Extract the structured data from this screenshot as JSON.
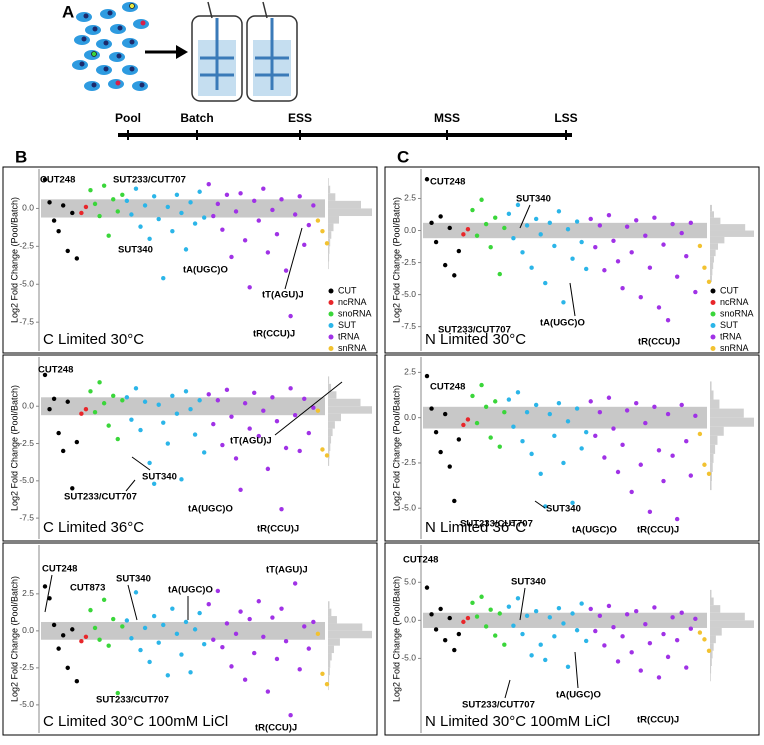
{
  "labels": {
    "a": "A",
    "b": "B",
    "c": "C"
  },
  "timeline": [
    "Pool",
    "Batch",
    "ESS",
    "MSS",
    "LSS"
  ],
  "chart_data": [
    {
      "type": "scatter",
      "title": "C Limited 30°C",
      "y_label": "Log2 Fold Change (Pool/Batch)",
      "ylim": [
        -9.4,
        2.6
      ],
      "yticks": [
        {
          "value": 0,
          "label": "0.0"
        },
        -2.5,
        {
          "value": -5,
          "label": "-5.0"
        },
        -7.5
      ],
      "band": [
        -0.6,
        0.6
      ],
      "legend": "right",
      "series": [
        {
          "name": "CUT",
          "color": "#000000",
          "values": [
            1.9,
            0.4,
            -0.8,
            -1.5,
            0.2,
            -2.8,
            -0.3,
            -3.3
          ]
        },
        {
          "name": "ncRNA",
          "color": "#e8262a",
          "values": [
            -0.3,
            0.1
          ]
        },
        {
          "name": "snoRNA",
          "color": "#3ad63a",
          "values": [
            1.2,
            0.3,
            -0.5,
            1.5,
            -1.8,
            0.6,
            -0.2,
            0.9
          ]
        },
        {
          "name": "SUT",
          "color": "#2bb5e8",
          "values": [
            0.5,
            -0.4,
            1.3,
            -1.2,
            0.2,
            -2.0,
            0.8,
            -0.7,
            -4.6,
            0.1,
            -1.5,
            0.9,
            -0.3,
            -2.7,
            0.4,
            -1.0,
            1.1,
            -0.6
          ]
        },
        {
          "name": "tRNA",
          "color": "#a032e6",
          "values": [
            1.6,
            -0.5,
            0.3,
            -1.4,
            0.9,
            -3.2,
            -0.2,
            1.0,
            -2.1,
            -5.2,
            0.5,
            -0.8,
            1.3,
            -2.9,
            -0.1,
            -1.7,
            0.6,
            -4.1,
            -7.1,
            -0.4,
            0.8,
            -2.4,
            -1.1,
            0.2
          ]
        },
        {
          "name": "snRNA",
          "color": "#f2c230",
          "values": [
            -0.8,
            -1.5,
            -2.3
          ]
        }
      ],
      "histogram": {
        "bins": [
          -4,
          -3.5,
          -3,
          -2.5,
          -2,
          -1.5,
          -1,
          -0.5,
          0,
          0.5,
          1,
          1.5,
          2
        ],
        "counts": [
          2,
          3,
          4,
          6,
          9,
          15,
          30,
          120,
          90,
          20,
          6,
          2
        ]
      },
      "annotations": [
        "CUT248",
        "SUT233/CUT707",
        "SUT340",
        "tA(UGC)O",
        "tT(AGU)J",
        "tR(CCU)J"
      ]
    },
    {
      "type": "scatter",
      "title": "C Limited 36°C",
      "y_label": "Log2 Fold Change (Pool/Batch)",
      "ylim": [
        -8.9,
        3.3
      ],
      "yticks": [
        {
          "value": 0,
          "label": "0.0"
        },
        -2.5,
        {
          "value": -5,
          "label": "-5.0"
        },
        -7.5
      ],
      "band": [
        -0.6,
        0.6
      ],
      "series": [
        {
          "name": "CUT",
          "color": "#000000",
          "values": [
            2.1,
            -0.2,
            0.5,
            -1.8,
            -3.0,
            0.3,
            -5.5,
            -2.4
          ]
        },
        {
          "name": "ncRNA",
          "color": "#e8262a",
          "values": [
            -0.5,
            -0.2
          ]
        },
        {
          "name": "snoRNA",
          "color": "#3ad63a",
          "values": [
            1.0,
            -0.4,
            1.6,
            0.2,
            -1.3,
            0.7,
            -2.2,
            0.4
          ]
        },
        {
          "name": "SUT",
          "color": "#2bb5e8",
          "values": [
            0.6,
            -0.9,
            1.2,
            -1.6,
            0.3,
            -3.8,
            -5.2,
            0.1,
            -1.1,
            -2.5,
            0.7,
            -0.5,
            -4.9,
            1.0,
            -0.2,
            -1.9,
            0.4,
            -3.1
          ]
        },
        {
          "name": "tRNA",
          "color": "#a032e6",
          "values": [
            0.8,
            -1.2,
            0.4,
            -2.6,
            1.1,
            -0.7,
            -3.5,
            -5.6,
            0.2,
            -1.5,
            0.9,
            -2.0,
            -0.3,
            -4.2,
            0.6,
            -1.0,
            -6.9,
            -2.8,
            1.2,
            -0.6,
            -3.0,
            0.5,
            -1.8,
            -0.1
          ]
        },
        {
          "name": "snRNA",
          "color": "#f2c230",
          "values": [
            -0.3,
            -2.9,
            -3.3
          ]
        }
      ],
      "histogram": {
        "bins": [
          -4,
          -3.5,
          -3,
          -2.5,
          -2,
          -1.5,
          -1,
          -0.5,
          0,
          0.5,
          1,
          1.5,
          2
        ],
        "counts": [
          3,
          4,
          6,
          8,
          12,
          18,
          34,
          115,
          85,
          22,
          8,
          3
        ]
      },
      "annotations": [
        "CUT248",
        "tT(AGU)J",
        "SUT340",
        "SUT233/CUT707",
        "tA(UGC)O",
        "tR(CCU)J"
      ]
    },
    {
      "type": "scatter",
      "title": "C Limited 30°C 100mM LiCl",
      "y_label": "Log2 Fold Change (Pool/Batch)",
      "ylim": [
        -6.9,
        5.8
      ],
      "yticks": [
        2.5,
        {
          "value": 0,
          "label": "0.0"
        },
        -2.5,
        {
          "value": -5,
          "label": "-5.0"
        }
      ],
      "band": [
        -0.6,
        0.6
      ],
      "series": [
        {
          "name": "CUT",
          "color": "#000000",
          "values": [
            3.0,
            2.2,
            0.4,
            -1.2,
            -0.3,
            -2.5,
            0.1,
            -3.4
          ]
        },
        {
          "name": "ncRNA",
          "color": "#e8262a",
          "values": [
            -0.7,
            -0.4
          ]
        },
        {
          "name": "snoRNA",
          "color": "#3ad63a",
          "values": [
            1.4,
            0.2,
            -0.6,
            2.1,
            -1.0,
            0.8,
            -4.2,
            0.3
          ]
        },
        {
          "name": "SUT",
          "color": "#2bb5e8",
          "values": [
            0.7,
            -0.5,
            2.6,
            -1.3,
            0.2,
            -2.1,
            1.0,
            -0.8,
            0.4,
            -3.0,
            1.5,
            -0.2,
            -1.6,
            0.6,
            -2.8,
            0.1,
            1.2,
            -0.9
          ]
        },
        {
          "name": "tRNA",
          "color": "#a032e6",
          "values": [
            1.8,
            -0.6,
            2.7,
            -1.1,
            0.5,
            -2.4,
            -0.2,
            1.3,
            -3.3,
            0.8,
            -1.5,
            2.0,
            -0.4,
            -4.1,
            0.9,
            -1.9,
            1.5,
            -0.7,
            -5.7,
            3.2,
            -2.6,
            0.3,
            -1.2,
            0.6
          ]
        },
        {
          "name": "snRNA",
          "color": "#f2c230",
          "values": [
            -0.2,
            -2.9,
            -3.6
          ]
        }
      ],
      "histogram": {
        "bins": [
          -4,
          -3.5,
          -3,
          -2.5,
          -2,
          -1.5,
          -1,
          -0.5,
          0,
          0.5,
          1,
          1.5,
          2
        ],
        "counts": [
          2,
          3,
          5,
          6,
          10,
          16,
          32,
          118,
          92,
          24,
          9,
          4
        ]
      },
      "annotations": [
        "CUT248",
        "CUT873",
        "SUT340",
        "tA(UGC)O",
        "tT(AGU)J",
        "SUT233/CUT707",
        "tR(CCU)J"
      ]
    },
    {
      "type": "scatter",
      "title": "N Limited 30°C",
      "y_label": "Log2 Fold Change (Pool/Batch)",
      "ylim": [
        -9.4,
        4.8
      ],
      "yticks": [
        2.5,
        {
          "value": 0,
          "label": "0.0"
        },
        -2.5,
        {
          "value": -5,
          "label": "-5.0"
        },
        -7.5
      ],
      "band": [
        -0.6,
        0.6
      ],
      "legend": "right",
      "series": [
        {
          "name": "CUT",
          "color": "#000000",
          "values": [
            4.0,
            0.6,
            -0.9,
            1.1,
            -2.7,
            0.2,
            -3.5,
            -1.6
          ]
        },
        {
          "name": "ncRNA",
          "color": "#e8262a",
          "values": [
            -0.3,
            0.1
          ]
        },
        {
          "name": "snoRNA",
          "color": "#3ad63a",
          "values": [
            1.6,
            -0.4,
            2.4,
            0.5,
            -1.3,
            1.0,
            -3.4,
            0.2
          ]
        },
        {
          "name": "SUT",
          "color": "#2bb5e8",
          "values": [
            1.3,
            -0.6,
            2.0,
            -1.7,
            0.4,
            -2.9,
            0.9,
            -0.3,
            -4.1,
            0.6,
            -1.2,
            1.5,
            -5.6,
            0.1,
            -2.2,
            0.7,
            -0.9,
            -3.0
          ]
        },
        {
          "name": "tRNA",
          "color": "#a032e6",
          "values": [
            0.9,
            -1.3,
            0.4,
            -3.1,
            1.2,
            -0.8,
            -2.4,
            -4.5,
            0.3,
            -1.7,
            0.8,
            -5.2,
            -0.4,
            -2.9,
            1.0,
            -6.0,
            -1.1,
            -7.0,
            0.5,
            -3.6,
            -0.2,
            -2.0,
            0.6,
            -4.8
          ]
        },
        {
          "name": "snRNA",
          "color": "#f2c230",
          "values": [
            -1.2,
            -2.9,
            -4.0
          ]
        }
      ],
      "histogram": {
        "bins": [
          -4,
          -3.5,
          -3,
          -2.5,
          -2,
          -1.5,
          -1,
          -0.5,
          0,
          0.5,
          1,
          1.5,
          2
        ],
        "counts": [
          5,
          6,
          8,
          10,
          14,
          20,
          36,
          110,
          88,
          26,
          10,
          5
        ]
      },
      "annotations": [
        "CUT248",
        "SUT340",
        "SUT233/CUT707",
        "tA(UGC)O",
        "tR(CCU)J"
      ]
    },
    {
      "type": "scatter",
      "title": "N Limited 36°C",
      "y_label": "Log2 Fold Change (Pool/Batch)",
      "ylim": [
        -6.7,
        3.35
      ],
      "yticks": [
        2.5,
        {
          "value": 0,
          "label": "0.0"
        },
        -2.5,
        {
          "value": -5,
          "label": "-5.0"
        }
      ],
      "band": [
        -0.6,
        0.6
      ],
      "series": [
        {
          "name": "CUT",
          "color": "#000000",
          "values": [
            2.3,
            0.5,
            -0.8,
            -1.9,
            0.2,
            -2.7,
            -4.6,
            -1.2
          ]
        },
        {
          "name": "ncRNA",
          "color": "#e8262a",
          "values": [
            -0.4,
            -0.1
          ]
        },
        {
          "name": "snoRNA",
          "color": "#3ad63a",
          "values": [
            1.2,
            -0.3,
            1.8,
            0.6,
            -1.1,
            0.9,
            -1.6,
            0.3
          ]
        },
        {
          "name": "SUT",
          "color": "#2bb5e8",
          "values": [
            1.0,
            -0.5,
            1.4,
            -1.3,
            0.3,
            -2.0,
            0.7,
            -3.1,
            -4.9,
            0.2,
            -1.0,
            0.8,
            -2.5,
            -0.2,
            -4.7,
            0.5,
            -1.7,
            -0.8
          ]
        },
        {
          "name": "tRNA",
          "color": "#a032e6",
          "values": [
            0.9,
            -1.0,
            0.3,
            -2.2,
            1.1,
            -0.6,
            -3.0,
            -1.5,
            0.4,
            -4.1,
            0.8,
            -2.6,
            -0.3,
            -5.2,
            0.6,
            -1.8,
            -3.5,
            0.2,
            -2.1,
            -5.6,
            0.7,
            -1.3,
            -3.2,
            0.1
          ]
        },
        {
          "name": "snRNA",
          "color": "#f2c230",
          "values": [
            -0.9,
            -2.6,
            -3.1
          ]
        }
      ],
      "histogram": {
        "bins": [
          -4,
          -3.5,
          -3,
          -2.5,
          -2,
          -1.5,
          -1,
          -0.5,
          0,
          0.5,
          1,
          1.5,
          2
        ],
        "counts": [
          4,
          5,
          7,
          9,
          13,
          19,
          35,
          112,
          86,
          24,
          9,
          4
        ]
      },
      "annotations": [
        "CUT248",
        "SUT233/CUT707",
        "SUT340",
        "tA(UGC)O",
        "tR(CCU)J"
      ]
    },
    {
      "type": "scatter",
      "title": "N Limited 30°C 100mM LiCl",
      "y_label": "Log2 Fold Change (Pool/Batch)",
      "ylim": [
        -14.8,
        9.9
      ],
      "yticks": [
        {
          "value": 5,
          "label": "5.0"
        },
        {
          "value": 0,
          "label": "0.0"
        },
        {
          "value": -5,
          "label": "-5.0"
        }
      ],
      "band": [
        -1.0,
        1.0
      ],
      "series": [
        {
          "name": "CUT",
          "color": "#000000",
          "values": [
            4.3,
            0.8,
            -1.2,
            1.5,
            -2.6,
            0.3,
            -3.9,
            -1.8
          ]
        },
        {
          "name": "ncRNA",
          "color": "#e8262a",
          "values": [
            -0.2,
            0.3
          ]
        },
        {
          "name": "snoRNA",
          "color": "#3ad63a",
          "values": [
            2.3,
            0.5,
            3.1,
            -0.8,
            1.4,
            -2.0,
            0.9,
            -3.2
          ]
        },
        {
          "name": "SUT",
          "color": "#2bb5e8",
          "values": [
            1.8,
            -0.7,
            2.9,
            -1.8,
            0.6,
            -4.6,
            1.2,
            -3.2,
            -5.2,
            0.4,
            -2.1,
            1.6,
            -0.4,
            -6.1,
            0.9,
            -1.3,
            2.2,
            -2.7
          ]
        },
        {
          "name": "tRNA",
          "color": "#a032e6",
          "values": [
            1.5,
            -1.4,
            0.6,
            -3.3,
            1.9,
            -0.9,
            -5.4,
            -2.1,
            0.8,
            -4.2,
            1.2,
            -6.6,
            -0.5,
            -3.0,
            1.7,
            -7.5,
            -1.8,
            -4.8,
            0.4,
            -2.6,
            1.0,
            -6.2,
            -1.1,
            0.2
          ]
        },
        {
          "name": "snRNA",
          "color": "#f2c230",
          "values": [
            -1.6,
            -2.5,
            -4.0
          ]
        }
      ],
      "histogram": {
        "bins": [
          -8,
          -7,
          -6,
          -5,
          -4,
          -3,
          -2,
          -1,
          0,
          1,
          2,
          3,
          4
        ],
        "counts": [
          2,
          3,
          5,
          7,
          10,
          16,
          32,
          120,
          95,
          28,
          10,
          4
        ]
      },
      "annotations": [
        "CUT248",
        "SUT340",
        "SUT233/CUT707",
        "tA(UGC)O",
        "tR(CCU)J"
      ]
    }
  ]
}
